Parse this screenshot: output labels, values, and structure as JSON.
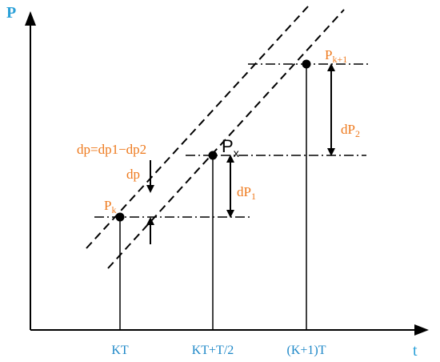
{
  "axes": {
    "y_label": "P",
    "x_label": "t",
    "label_color": "#2aa0d8",
    "tick_color": "#1e88c8",
    "x_ticks": [
      "KT",
      "KT+T/2",
      "(K+1)T"
    ]
  },
  "points": {
    "pk": {
      "base": "P",
      "sub": "k"
    },
    "px": {
      "base": "P",
      "sub": "x"
    },
    "pk1": {
      "base": "P",
      "sub": "k+1"
    }
  },
  "annotations": {
    "dp_formula": "dp=dp1−dp2",
    "dp": "dp",
    "dp1": {
      "base": "dP",
      "sub": "1"
    },
    "dp2": {
      "base": "dP",
      "sub": "2"
    },
    "color": "#ee7a1e"
  }
}
